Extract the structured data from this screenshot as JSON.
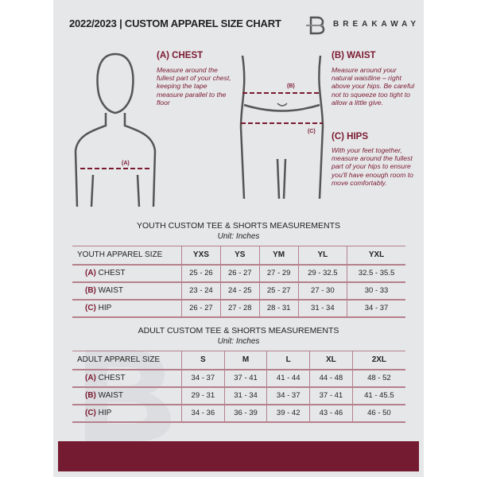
{
  "header": {
    "title": "2022/2023  |  CUSTOM APPAREL SIZE CHART",
    "brand": "BREAKAWAY"
  },
  "chest": {
    "title": "(A) CHEST",
    "desc": "Measure around the fullest part of your chest, keeping the tape measure parallel to the floor",
    "marker": "(A)"
  },
  "waist": {
    "title": "(B) WAIST",
    "desc": "Measure around your natural waistline – right above your hips. Be careful not to squeeze too tight to allow a little give.",
    "marker": "(B)"
  },
  "hips": {
    "title": "(C) HIPS",
    "desc": "With your feet together, measure around the fullest part of your hips to ensure you'll have enough room to move comfortably.",
    "marker": "(C)"
  },
  "youth": {
    "title": "YOUTH CUSTOM TEE & SHORTS MEASUREMENTS",
    "unit": "Unit: Inches",
    "header": "YOUTH APPAREL SIZE",
    "sizes": [
      "YXS",
      "YS",
      "YM",
      "YL",
      "YXL"
    ],
    "rows": [
      {
        "tag": "(A)",
        "label": "CHEST",
        "values": [
          "25 - 26",
          "26 - 27",
          "27 - 29",
          "29 - 32.5",
          "32.5 - 35.5"
        ]
      },
      {
        "tag": "(B)",
        "label": "WAIST",
        "values": [
          "23 - 24",
          "24 - 25",
          "25 - 27",
          "27 - 30",
          "30 - 33"
        ]
      },
      {
        "tag": "(C)",
        "label": "HIP",
        "values": [
          "26 - 27",
          "27 - 28",
          "28 - 31",
          "31 - 34",
          "34 - 37"
        ]
      }
    ]
  },
  "adult": {
    "title": "ADULT CUSTOM TEE & SHORTS MEASUREMENTS",
    "unit": "Unit: Inches",
    "header": "ADULT APPAREL SIZE",
    "sizes": [
      "S",
      "M",
      "L",
      "XL",
      "2XL"
    ],
    "rows": [
      {
        "tag": "(A)",
        "label": "CHEST",
        "values": [
          "34 - 37",
          "37 - 41",
          "41 - 44",
          "44 - 48",
          "48 - 52"
        ]
      },
      {
        "tag": "(B)",
        "label": "WAIST",
        "values": [
          "29 - 31",
          "31 - 34",
          "34 - 37",
          "37 - 41",
          "41 - 45.5"
        ]
      },
      {
        "tag": "(C)",
        "label": "HIP",
        "values": [
          "34 - 36",
          "36 - 39",
          "39 - 42",
          "43 - 46",
          "46 - 50"
        ]
      }
    ]
  },
  "colors": {
    "accent": "#741b32",
    "background": "#e6e7e9"
  }
}
